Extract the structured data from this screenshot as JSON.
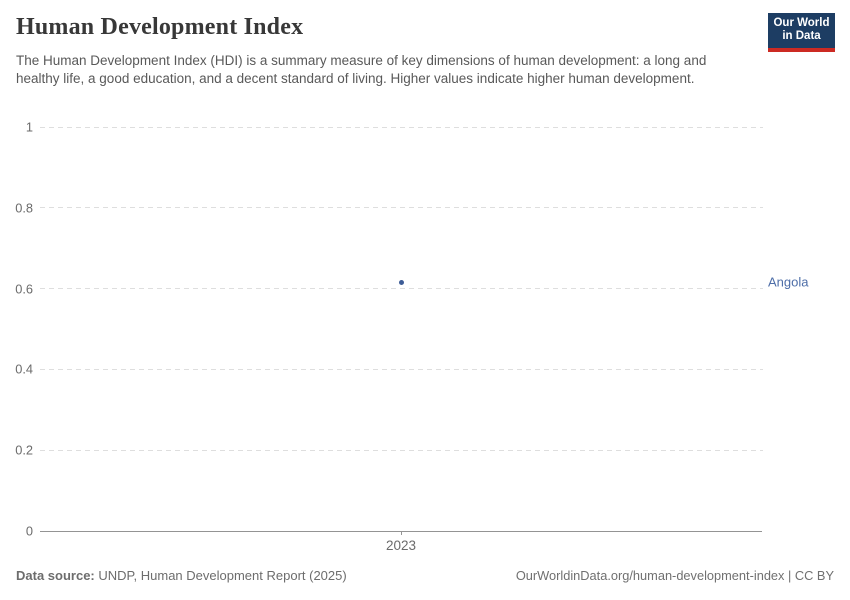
{
  "header": {
    "title": "Human Development Index",
    "subtitle": "The Human Development Index (HDI) is a summary measure of key dimensions of human development: a long and healthy life, a good education, and a decent standard of living. Higher values indicate higher human development.",
    "logo": {
      "line1": "Our World",
      "line2": "in Data",
      "bg_color": "#1d3d63",
      "accent_color": "#cc2a23"
    }
  },
  "chart_data": {
    "type": "scatter",
    "title": "Human Development Index",
    "x": [
      2023
    ],
    "series": [
      {
        "name": "Angola",
        "values": [
          0.616
        ],
        "color": "#3d5c96",
        "label_color": "#4e6ea8"
      }
    ],
    "xlabel": "",
    "ylabel": "",
    "ylim": [
      0,
      1
    ],
    "yticks": [
      0,
      0.2,
      0.4,
      0.6,
      0.8,
      1
    ],
    "ytick_labels": [
      "0",
      "0.2",
      "0.4",
      "0.6",
      "0.8",
      "1"
    ],
    "xtick_labels": [
      "2023"
    ],
    "grid": "horizontal-dashed",
    "legend_position": "right-entity-label"
  },
  "footer": {
    "source_label": "Data source:",
    "source_text": "UNDP, Human Development Report (2025)",
    "attribution": "OurWorldinData.org/human-development-index | CC BY"
  }
}
